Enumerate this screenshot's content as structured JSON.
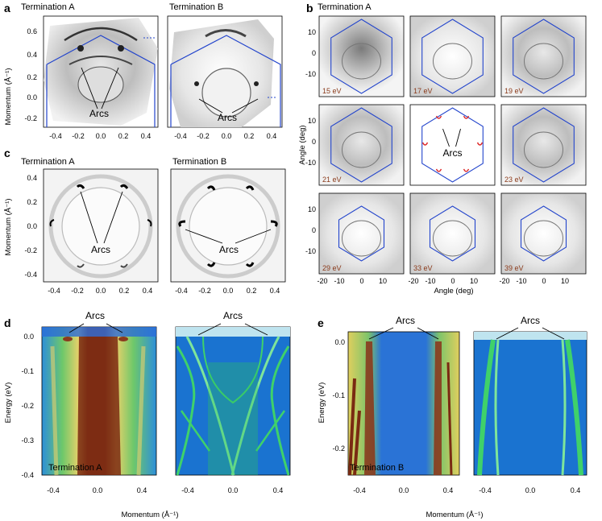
{
  "figure": {
    "panel_a": {
      "letter": "a",
      "titles": [
        "Termination A",
        "Termination B"
      ],
      "ylabel": "Momentum (Å⁻¹)",
      "yticks": [
        "0.6",
        "0.4",
        "0.2",
        "0.0",
        "-0.2"
      ],
      "xticks": [
        "-0.4",
        "-0.2",
        "0.0",
        "0.2",
        "0.4"
      ],
      "arcs_label": "Arcs"
    },
    "panel_b": {
      "letter": "b",
      "title": "Termination A",
      "ylabel": "Angle (deg)",
      "xlabel": "Angle (deg)",
      "yticks": [
        "10",
        "0",
        "-10"
      ],
      "xticks": [
        "-20",
        "-10",
        "0",
        "10"
      ],
      "energies": [
        "15 eV",
        "17 eV",
        "19 eV",
        "21 eV",
        "",
        "23 eV",
        "29 eV",
        "33 eV",
        "39 eV"
      ],
      "arcs_label": "Arcs"
    },
    "panel_c": {
      "letter": "c",
      "titles": [
        "Termination A",
        "Termination B"
      ],
      "ylabel": "Momentum (Å⁻¹)",
      "yticks": [
        "0.4",
        "0.2",
        "0.0",
        "-0.2",
        "-0.4"
      ],
      "xticks": [
        "-0.4",
        "-0.2",
        "0.0",
        "0.2",
        "0.4"
      ],
      "arcs_label": "Arcs"
    },
    "panel_d": {
      "letter": "d",
      "ylabel": "Energy (eV)",
      "xlabel": "Momentum (Å⁻¹)",
      "yticks": [
        "0.0",
        "-0.1",
        "-0.2",
        "-0.3",
        "-0.4"
      ],
      "xticks": [
        "-0.4",
        "0.0",
        "0.4"
      ],
      "xticks_sim": [
        "-0.4",
        "0.0",
        "0.4"
      ],
      "inset": "Termination A",
      "arcs_label": "Arcs"
    },
    "panel_e": {
      "letter": "e",
      "ylabel": "Energy (eV)",
      "xlabel": "Momentum (Å⁻¹)",
      "yticks": [
        "0.0",
        "-0.1",
        "-0.2"
      ],
      "xticks": [
        "-0.4",
        "0.0",
        "0.4"
      ],
      "xticks_sim": [
        "-0.4",
        "0.0",
        "0.4"
      ],
      "inset": "Termination B",
      "arcs_label": "Arcs"
    }
  },
  "colors": {
    "hexagon": "#2244cc",
    "arc_marker": "#dd2222",
    "arpes_bg": "#2a6bd8",
    "arpes_band": "#7a2a12",
    "sim_bg": "#1a73d0",
    "sim_band": "#3fd16a"
  }
}
